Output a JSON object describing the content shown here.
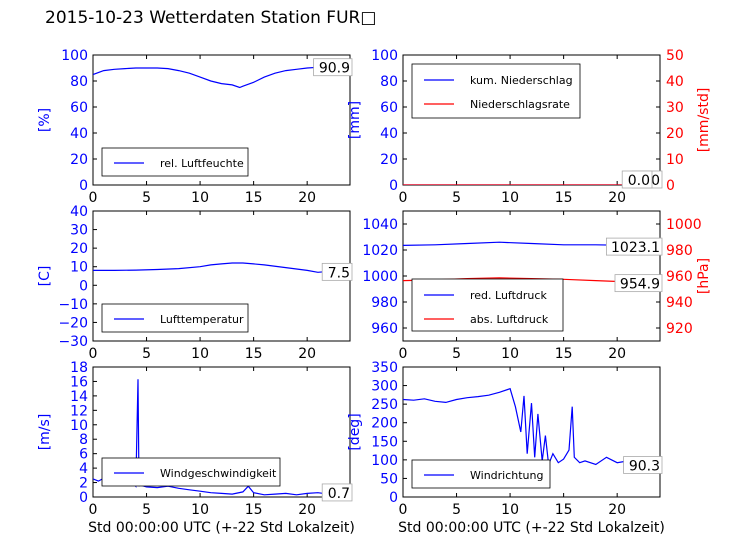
{
  "title": "2015-10-23 Wetterdaten Station FUR□",
  "colors": {
    "blue": "#0000ff",
    "red": "#ff0000",
    "black": "#000000"
  },
  "chart_data": [
    {
      "type": "line",
      "ylabel": "[%]",
      "xlim": [
        0,
        24
      ],
      "ylim": [
        0,
        100
      ],
      "xticks": [
        "0",
        "5",
        "10",
        "15",
        "20"
      ],
      "yticks": [
        "0",
        "20",
        "40",
        "60",
        "80",
        "100"
      ],
      "legend": "lower-left",
      "last_value": "90.9",
      "series": [
        {
          "name": "rel. Luftfeuchte",
          "color": "#0000ff",
          "x": [
            0,
            1,
            2,
            3,
            4,
            5,
            6,
            7,
            8,
            9,
            10,
            11,
            12,
            13,
            13.7,
            14,
            15,
            16,
            17,
            18,
            19,
            20,
            21,
            22,
            23,
            24
          ],
          "y": [
            85,
            88,
            89,
            89.5,
            90,
            90,
            90,
            89.5,
            88,
            86,
            83,
            80,
            78,
            77,
            75,
            76,
            79,
            83,
            86,
            88,
            89,
            90,
            90.5,
            91,
            91,
            91
          ]
        }
      ]
    },
    {
      "type": "line",
      "ylabel": "[mm]",
      "ylabel2": "[mm/std]",
      "xlim": [
        0,
        24
      ],
      "ylim": [
        0,
        100
      ],
      "ylim2": [
        0,
        50
      ],
      "xticks": [
        "0",
        "5",
        "10",
        "15",
        "20"
      ],
      "yticks": [
        "0",
        "20",
        "40",
        "60",
        "80",
        "100"
      ],
      "yticks2": [
        "0",
        "10",
        "20",
        "30",
        "40",
        "50"
      ],
      "legend": "upper-left",
      "last_value": "0.0",
      "last_value2": "0.0",
      "series": [
        {
          "name": "kum. Niederschlag",
          "color": "#0000ff",
          "x": [
            0,
            24
          ],
          "y": [
            0,
            0
          ]
        },
        {
          "name": "Niederschlagsrate",
          "color": "#ff0000",
          "x": [
            0,
            24
          ],
          "y": [
            0,
            0
          ]
        }
      ]
    },
    {
      "type": "line",
      "ylabel": "[C]",
      "xlim": [
        0,
        24
      ],
      "ylim": [
        -30,
        40
      ],
      "xticks": [
        "0",
        "5",
        "10",
        "15",
        "20"
      ],
      "yticks": [
        "−30",
        "−20",
        "−10",
        "0",
        "10",
        "20",
        "30",
        "40"
      ],
      "legend": "lower-left",
      "last_value": "7.5",
      "series": [
        {
          "name": "Lufttemperatur",
          "color": "#0000ff",
          "x": [
            0,
            2,
            4,
            6,
            8,
            10,
            11,
            12,
            13,
            14,
            15,
            16,
            18,
            20,
            21,
            22,
            23,
            24
          ],
          "y": [
            8,
            8,
            8.2,
            8.5,
            9,
            10,
            11,
            11.5,
            12,
            12,
            11.5,
            11,
            9.5,
            8,
            7,
            7.5,
            7.5,
            7.5
          ]
        }
      ]
    },
    {
      "type": "line",
      "ylabel2": "[hPa]",
      "xlim": [
        0,
        24
      ],
      "ylim": [
        950,
        1050
      ],
      "ylim2": [
        910,
        1010
      ],
      "xticks": [
        "0",
        "5",
        "10",
        "15",
        "20"
      ],
      "yticks": [
        "960",
        "980",
        "1000",
        "1020",
        "1040"
      ],
      "yticks2": [
        "920",
        "940",
        "960",
        "980",
        "1000"
      ],
      "legend": "lower-left",
      "last_value": "1023.1",
      "last_value2": "954.9",
      "series": [
        {
          "name": "red. Luftdruck",
          "color": "#0000ff",
          "x": [
            0,
            3,
            6,
            9,
            12,
            15,
            18,
            21,
            24
          ],
          "y": [
            1023.5,
            1024,
            1025,
            1026,
            1025,
            1024,
            1024,
            1023.5,
            1023
          ]
        },
        {
          "name": "abs. Luftdruck",
          "color": "#ff0000",
          "x": [
            0,
            3,
            6,
            9,
            12,
            15,
            18,
            21,
            24
          ],
          "y": [
            956.5,
            957,
            958,
            958.5,
            958,
            957.5,
            956.5,
            955.5,
            954.9
          ]
        }
      ]
    },
    {
      "type": "line",
      "ylabel": "[m/s]",
      "xlabel": "Std 00:00:00 UTC (+-22 Std Lokalzeit)",
      "xlim": [
        0,
        24
      ],
      "ylim": [
        0,
        18
      ],
      "xticks": [
        "0",
        "5",
        "10",
        "15",
        "20"
      ],
      "yticks": [
        "0",
        "2",
        "4",
        "6",
        "8",
        "10",
        "12",
        "14",
        "16",
        "18"
      ],
      "legend": "lower-center",
      "last_value": "0.7",
      "series": [
        {
          "name": "Windgeschwindigkeit",
          "color": "#0000ff",
          "x": [
            0,
            0.5,
            1,
            1.5,
            2,
            2.5,
            3,
            3.5,
            4,
            4.2,
            4.3,
            4.4,
            4.5,
            5,
            6,
            7,
            8,
            9,
            10,
            11,
            12,
            13,
            14,
            14.5,
            15,
            16,
            17,
            18,
            19,
            20,
            21,
            22,
            23,
            23.5,
            24
          ],
          "y": [
            2.5,
            2.2,
            2.6,
            2,
            2.8,
            1.8,
            2.2,
            2.5,
            1.5,
            16.3,
            1.5,
            1.8,
            1.6,
            1.4,
            1.3,
            1.5,
            1.2,
            1,
            0.8,
            0.6,
            0.5,
            0.4,
            0.7,
            1.5,
            0.6,
            0.3,
            0.4,
            0.5,
            0.3,
            0.5,
            0.6,
            0.4,
            0.8,
            0.5,
            0.7
          ]
        }
      ]
    },
    {
      "type": "line",
      "ylabel": "[deg]",
      "xlabel": "Std 00:00:00 UTC (+-22 Std Lokalzeit)",
      "xlim": [
        0,
        24
      ],
      "ylim": [
        0,
        360
      ],
      "xticks": [
        "0",
        "5",
        "10",
        "15",
        "20"
      ],
      "yticks": [
        "0",
        "50",
        "100",
        "150",
        "200",
        "250",
        "300",
        "350"
      ],
      "legend": "lower-left",
      "last_value": "90.3",
      "series": [
        {
          "name": "Windrichtung",
          "color": "#0000ff",
          "x": [
            0,
            1,
            2,
            3,
            4,
            5,
            6,
            7,
            8,
            9,
            10,
            10.5,
            11,
            11.3,
            11.6,
            12,
            12.3,
            12.6,
            13,
            13.3,
            13.6,
            14,
            14.5,
            15,
            15.5,
            15.8,
            16,
            16.5,
            17,
            18,
            19,
            20,
            21,
            22,
            23,
            24
          ],
          "y": [
            270,
            268,
            272,
            265,
            262,
            270,
            275,
            278,
            282,
            290,
            300,
            250,
            180,
            280,
            120,
            260,
            110,
            230,
            100,
            170,
            90,
            120,
            95,
            105,
            130,
            250,
            110,
            95,
            100,
            90,
            110,
            95,
            100,
            92,
            95,
            90
          ]
        }
      ]
    }
  ]
}
